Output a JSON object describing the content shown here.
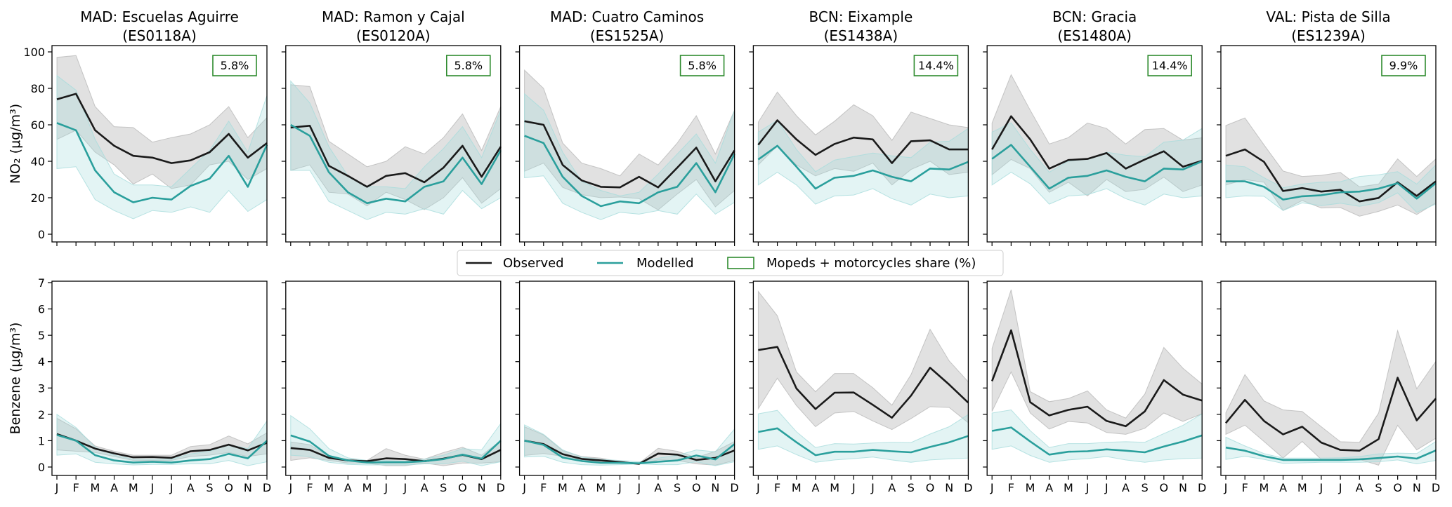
{
  "chart_data": {
    "type": "line",
    "months": [
      "J",
      "F",
      "M",
      "A",
      "M",
      "J",
      "J",
      "A",
      "S",
      "O",
      "N",
      "D"
    ],
    "legend": {
      "placement": "center",
      "observed": "Observed",
      "modelled": "Modelled",
      "share": "Mopeds + motorcycles share (%)"
    },
    "colors": {
      "observed": "#1a1a1a",
      "modelled": "#2a9f9c",
      "share_box": "#2e8b2e",
      "observed_band": "#b8b8b8",
      "modelled_band": "#a8dcdc"
    },
    "rows": [
      {
        "key": "no2",
        "ylabel": "NO₂ (μg/m³)",
        "ylim": [
          -3.5,
          104
        ],
        "yticks": [
          0,
          20,
          40,
          60,
          80,
          100
        ]
      },
      {
        "key": "benzene",
        "ylabel": "Benzene (μg/m³)",
        "ylim": [
          -0.45,
          7.05
        ],
        "yticks": [
          0,
          1,
          2,
          3,
          4,
          5,
          6,
          7
        ]
      }
    ],
    "stations": [
      {
        "title": "MAD: Escuelas Aguirre",
        "code": "(ES0118A)",
        "share": "5.8%",
        "no2": {
          "observed": [
            74,
            77,
            57,
            48.5,
            43,
            42,
            39,
            40.5,
            45,
            55,
            42,
            50
          ],
          "observed_upper": [
            97,
            98,
            70,
            59,
            58.5,
            50.5,
            53,
            55,
            60,
            70,
            53,
            64
          ],
          "observed_lower": [
            52,
            57,
            45,
            38,
            27.5,
            33,
            25,
            27,
            38,
            40,
            30,
            36
          ],
          "modelled": [
            61,
            57,
            35,
            23,
            17.5,
            20,
            19,
            26.5,
            30.5,
            43,
            26,
            49
          ],
          "modelled_upper": [
            87,
            79,
            52,
            33,
            27,
            27,
            26,
            36,
            46,
            62,
            45,
            76
          ],
          "modelled_lower": [
            36,
            37,
            19,
            13,
            8.5,
            13,
            12,
            15,
            12,
            24,
            12.5,
            19
          ]
        },
        "benzene": {
          "observed": [
            1.25,
            1.0,
            0.7,
            0.52,
            0.37,
            0.38,
            0.35,
            0.6,
            0.65,
            0.85,
            0.63,
            0.92
          ],
          "observed_upper": [
            1.85,
            1.45,
            0.8,
            0.6,
            0.45,
            0.45,
            0.45,
            0.78,
            0.85,
            1.18,
            0.88,
            1.3
          ],
          "observed_lower": [
            0.65,
            0.6,
            0.55,
            0.4,
            0.25,
            0.25,
            0.25,
            0.4,
            0.45,
            0.55,
            0.4,
            0.5
          ],
          "modelled": [
            1.22,
            1.0,
            0.45,
            0.25,
            0.17,
            0.2,
            0.17,
            0.25,
            0.3,
            0.5,
            0.33,
            1.0
          ],
          "modelled_upper": [
            2.0,
            1.5,
            0.75,
            0.45,
            0.3,
            0.3,
            0.3,
            0.5,
            0.6,
            0.85,
            0.7,
            1.75
          ],
          "modelled_lower": [
            0.45,
            0.5,
            0.18,
            0.12,
            0.08,
            0.1,
            0.1,
            0.12,
            0.12,
            0.25,
            0.05,
            0.2
          ]
        }
      },
      {
        "title": "MAD: Ramon y Cajal",
        "code": "(ES0120A)",
        "share": "5.8%",
        "no2": {
          "observed": [
            58.5,
            59.5,
            37.5,
            32,
            26,
            32,
            33.5,
            28.5,
            36.5,
            48.5,
            31.5,
            48
          ],
          "observed_upper": [
            82,
            81,
            51,
            44,
            37,
            40,
            48,
            44,
            53,
            66,
            46,
            70
          ],
          "observed_lower": [
            35,
            38,
            23,
            22,
            15.5,
            23,
            19,
            13.5,
            20,
            31,
            17,
            25
          ],
          "modelled": [
            60,
            54,
            34,
            23,
            17,
            19.5,
            18,
            26,
            29,
            42,
            27.5,
            46
          ],
          "modelled_upper": [
            84,
            72,
            48,
            32,
            26,
            26,
            25,
            37,
            47,
            59,
            42,
            68
          ],
          "modelled_lower": [
            35,
            35,
            18,
            13,
            8,
            12,
            11,
            14,
            11,
            24,
            14,
            20
          ]
        },
        "benzene": {
          "observed": [
            0.72,
            0.65,
            0.35,
            0.25,
            0.22,
            0.33,
            0.3,
            0.22,
            0.32,
            0.46,
            0.3,
            0.65
          ],
          "observed_upper": [
            0.95,
            0.85,
            0.4,
            0.3,
            0.25,
            0.7,
            0.45,
            0.3,
            0.55,
            0.75,
            0.45,
            1.0
          ],
          "observed_lower": [
            0.25,
            0.35,
            0.25,
            0.15,
            0.15,
            0.05,
            0.05,
            0.15,
            0.05,
            0.15,
            0.15,
            0.2
          ],
          "modelled": [
            1.2,
            0.97,
            0.42,
            0.25,
            0.17,
            0.18,
            0.18,
            0.22,
            0.3,
            0.47,
            0.32,
            1.0
          ],
          "modelled_upper": [
            1.95,
            1.45,
            0.7,
            0.35,
            0.25,
            0.25,
            0.22,
            0.3,
            0.45,
            0.7,
            0.65,
            1.65
          ],
          "modelled_lower": [
            0.45,
            0.4,
            0.18,
            0.1,
            0.08,
            0.08,
            0.08,
            0.12,
            0.12,
            0.22,
            0.05,
            0.2
          ]
        }
      },
      {
        "title": "MAD: Cuatro Caminos",
        "code": "(ES1525A)",
        "share": "5.8%",
        "no2": {
          "observed": [
            62,
            60,
            38,
            29.5,
            26,
            25.7,
            31.5,
            25.7,
            36.5,
            47.5,
            29,
            46
          ],
          "observed_upper": [
            90,
            80,
            50,
            39,
            36,
            32,
            44,
            38,
            50,
            65,
            44,
            68
          ],
          "observed_lower": [
            34.5,
            39,
            25.7,
            21.7,
            20,
            20.4,
            19.5,
            13.3,
            22,
            30,
            15,
            24
          ],
          "modelled": [
            54,
            50,
            31.5,
            21,
            15.4,
            18,
            17,
            23,
            26,
            39,
            23,
            44
          ],
          "modelled_upper": [
            77,
            68,
            45,
            29,
            24,
            21,
            23,
            33,
            44,
            55,
            39,
            68
          ],
          "modelled_lower": [
            31,
            32,
            17,
            12,
            8,
            12,
            11,
            13,
            11,
            22,
            11,
            17.5
          ]
        },
        "benzene": {
          "observed": [
            1.0,
            0.87,
            0.49,
            0.31,
            0.25,
            0.19,
            0.12,
            0.51,
            0.47,
            0.27,
            0.35,
            0.63
          ],
          "observed_upper": [
            1.53,
            1.22,
            0.62,
            0.4,
            0.34,
            0.2,
            0.14,
            0.71,
            0.6,
            0.36,
            0.6,
            0.97
          ],
          "observed_lower": [
            0.44,
            0.51,
            0.41,
            0.29,
            0.18,
            0.14,
            0.12,
            0.27,
            0.25,
            0.12,
            0.07,
            0.25
          ],
          "modelled": [
            1.0,
            0.84,
            0.36,
            0.23,
            0.16,
            0.16,
            0.14,
            0.2,
            0.25,
            0.44,
            0.29,
            0.87
          ],
          "modelled_upper": [
            1.6,
            1.24,
            0.65,
            0.38,
            0.29,
            0.25,
            0.2,
            0.34,
            0.44,
            0.65,
            0.58,
            1.44
          ],
          "modelled_lower": [
            0.38,
            0.41,
            0.18,
            0.09,
            0.07,
            0.09,
            0.12,
            0.09,
            0.09,
            0.2,
            0.05,
            0.2
          ]
        }
      },
      {
        "title": "BCN: Eixample",
        "code": "(ES1438A)",
        "share": "14.4%",
        "no2": {
          "observed": [
            49,
            62.5,
            52,
            43.5,
            49.5,
            53,
            52,
            39,
            51,
            51.5,
            46.5,
            46.5
          ],
          "observed_upper": [
            61.5,
            78,
            65,
            54.5,
            62,
            71,
            65,
            51.5,
            67,
            63.5,
            60,
            58.5
          ],
          "observed_lower": [
            38,
            48.5,
            38,
            32,
            36,
            34.5,
            39,
            27,
            35.5,
            40,
            32.7,
            34
          ],
          "modelled": [
            41,
            48.5,
            37,
            25,
            31,
            32,
            35,
            31.5,
            29,
            36,
            35.5,
            39.7
          ],
          "modelled_upper": [
            56,
            62.5,
            46.5,
            34.3,
            40.7,
            42.6,
            44.5,
            43,
            42,
            50.5,
            51,
            58
          ],
          "modelled_lower": [
            27,
            34,
            27,
            16.5,
            21,
            21.5,
            25,
            19.5,
            16,
            22,
            20,
            21
          ]
        },
        "benzene": {
          "observed": [
            4.44,
            4.56,
            2.98,
            2.2,
            2.82,
            2.83,
            2.36,
            1.87,
            2.71,
            3.77,
            3.13,
            2.44
          ],
          "observed_upper": [
            6.67,
            5.74,
            3.61,
            2.86,
            3.55,
            3.55,
            3.01,
            2.35,
            3.51,
            5.23,
            4.03,
            3.23
          ],
          "observed_lower": [
            2.21,
            3.37,
            2.33,
            1.53,
            2.05,
            2.11,
            1.75,
            1.42,
            1.84,
            2.29,
            2.26,
            1.68
          ],
          "modelled": [
            1.33,
            1.47,
            0.94,
            0.45,
            0.58,
            0.58,
            0.65,
            0.6,
            0.56,
            0.76,
            0.94,
            1.18
          ],
          "modelled_upper": [
            2.02,
            2.15,
            1.34,
            0.74,
            0.89,
            0.87,
            0.91,
            0.94,
            0.93,
            1.25,
            1.53,
            1.99
          ],
          "modelled_lower": [
            0.67,
            0.8,
            0.47,
            0.18,
            0.27,
            0.32,
            0.38,
            0.27,
            0.18,
            0.27,
            0.31,
            0.34
          ]
        }
      },
      {
        "title": "BCN: Gracia",
        "code": "(ES1480A)",
        "share": "14.4%",
        "no2": {
          "observed": [
            46.5,
            64.7,
            52,
            36,
            40.7,
            41.3,
            44.5,
            36,
            41,
            45.5,
            37,
            40.3
          ],
          "observed_upper": [
            61,
            87.5,
            68,
            49.5,
            53,
            61,
            58,
            49.5,
            57.4,
            58,
            51.6,
            52.9
          ],
          "observed_lower": [
            32.6,
            41,
            36,
            23,
            28.5,
            21,
            30,
            23.4,
            24.6,
            31.3,
            23.4,
            27
          ],
          "modelled": [
            41.3,
            49,
            37,
            25,
            31,
            32,
            35,
            31.5,
            29,
            36,
            35.5,
            40
          ],
          "modelled_upper": [
            56,
            61.1,
            46.5,
            34,
            40,
            41.3,
            45,
            43.3,
            42.5,
            50.5,
            51.6,
            58
          ],
          "modelled_lower": [
            27,
            34,
            27.6,
            16.5,
            21,
            21.7,
            25,
            19.5,
            16,
            22,
            20,
            21
          ]
        },
        "benzene": {
          "observed": [
            3.26,
            5.19,
            2.46,
            1.96,
            2.17,
            2.29,
            1.75,
            1.55,
            2.11,
            3.3,
            2.75,
            2.52
          ],
          "observed_upper": [
            4.5,
            6.73,
            2.86,
            2.48,
            2.6,
            2.89,
            2.17,
            1.86,
            2.77,
            4.54,
            3.75,
            3.15
          ],
          "observed_lower": [
            2.11,
            3.61,
            2.05,
            1.44,
            1.73,
            1.67,
            1.31,
            1.24,
            1.47,
            2.05,
            1.73,
            2.02
          ],
          "modelled": [
            1.37,
            1.5,
            0.97,
            0.47,
            0.58,
            0.6,
            0.67,
            0.62,
            0.56,
            0.78,
            0.97,
            1.2
          ],
          "modelled_upper": [
            2.05,
            2.17,
            1.38,
            0.74,
            0.89,
            0.89,
            0.94,
            0.96,
            0.94,
            1.27,
            1.58,
            2.02
          ],
          "modelled_lower": [
            0.67,
            0.8,
            0.44,
            0.18,
            0.27,
            0.32,
            0.4,
            0.27,
            0.18,
            0.27,
            0.32,
            0.34
          ]
        }
      },
      {
        "title": "VAL: Pista de Silla",
        "code": "(ES1239A)",
        "share": "9.9%",
        "no2": {
          "observed": [
            43,
            46.5,
            39.7,
            23.7,
            25.3,
            23.4,
            24.4,
            18,
            19.9,
            28.5,
            21,
            29
          ],
          "observed_upper": [
            59.6,
            63.8,
            49,
            34.7,
            31.7,
            32.3,
            33.9,
            26,
            27.5,
            41.3,
            31.7,
            41.3
          ],
          "observed_lower": [
            27,
            30,
            28.5,
            13,
            18.5,
            14.4,
            14.6,
            9.9,
            12.5,
            16,
            10.8,
            17.2
          ],
          "modelled": [
            29,
            29,
            26,
            19,
            20.8,
            21.4,
            23,
            23.4,
            25,
            28,
            19.5,
            28
          ],
          "modelled_upper": [
            38,
            37,
            31,
            25.5,
            27.5,
            28.5,
            28.8,
            31.7,
            32.6,
            34.3,
            27.5,
            38
          ],
          "modelled_lower": [
            20,
            21,
            20.8,
            13,
            17.2,
            15.7,
            17,
            15.3,
            17.3,
            22.7,
            12,
            16.5
          ]
        },
        "benzene": {
          "observed": [
            1.67,
            2.55,
            1.75,
            1.24,
            1.53,
            0.93,
            0.65,
            0.62,
            1.06,
            3.39,
            1.77,
            2.6
          ],
          "observed_upper": [
            2.06,
            3.51,
            2.51,
            2.17,
            2.11,
            1.53,
            0.96,
            0.94,
            2.05,
            5.18,
            2.97,
            4.01
          ],
          "observed_lower": [
            1.24,
            1.59,
            0.97,
            0.34,
            0.97,
            0.29,
            0.29,
            0.29,
            0.07,
            1.58,
            0.65,
            1.09
          ],
          "modelled": [
            0.74,
            0.62,
            0.41,
            0.27,
            0.27,
            0.27,
            0.27,
            0.29,
            0.34,
            0.4,
            0.32,
            0.63
          ],
          "modelled_upper": [
            1.13,
            0.8,
            0.51,
            0.34,
            0.34,
            0.34,
            0.35,
            0.4,
            0.5,
            0.53,
            0.51,
            0.97
          ],
          "modelled_lower": [
            0.29,
            0.41,
            0.29,
            0.14,
            0.16,
            0.18,
            0.18,
            0.18,
            0.2,
            0.27,
            0.12,
            0.25
          ]
        }
      }
    ]
  }
}
